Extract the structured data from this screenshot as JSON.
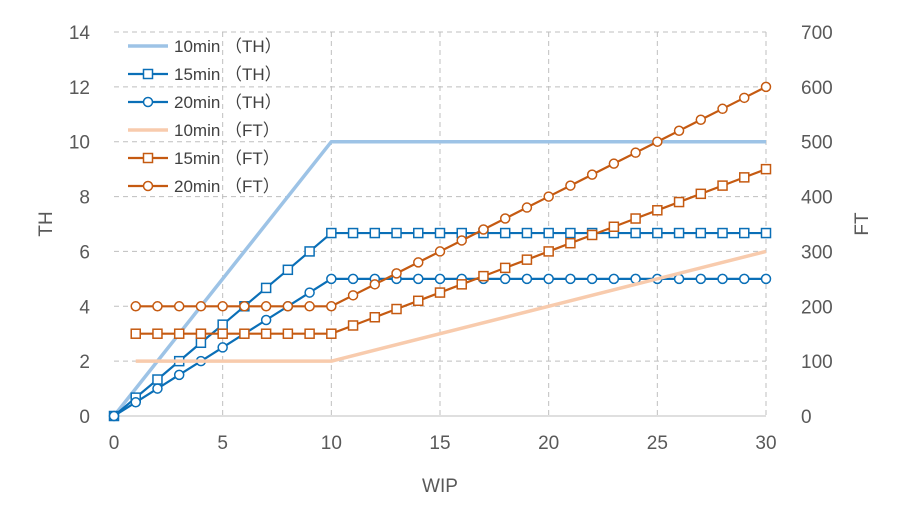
{
  "chart_data": {
    "type": "line",
    "title": "",
    "xlabel": "WIP",
    "ylabel": "TH",
    "y2label": "FT",
    "xlim": [
      0,
      30
    ],
    "ylim": [
      0,
      14
    ],
    "y2lim": [
      0,
      700
    ],
    "xticks": [
      0,
      5,
      10,
      15,
      20,
      25,
      30
    ],
    "yticks": [
      0,
      2,
      4,
      6,
      8,
      10,
      12,
      14
    ],
    "y2ticks": [
      0,
      100,
      200,
      300,
      400,
      500,
      600,
      700
    ],
    "grid": true,
    "legend_position": "top-left",
    "series": [
      {
        "name": "10min （TH）",
        "axis": "left",
        "color": "#9dc3e6",
        "marker": "none",
        "x": [
          0,
          10,
          30
        ],
        "values": [
          0,
          10,
          10
        ]
      },
      {
        "name": "15min （TH）",
        "axis": "left",
        "color": "#0a6fb7",
        "marker": "square",
        "x": [
          0,
          1,
          2,
          3,
          4,
          5,
          6,
          7,
          8,
          9,
          10,
          11,
          12,
          13,
          14,
          15,
          16,
          17,
          18,
          19,
          20,
          21,
          22,
          23,
          24,
          25,
          26,
          27,
          28,
          29,
          30
        ],
        "values": [
          0,
          0.67,
          1.33,
          2,
          2.67,
          3.33,
          4,
          4.67,
          5.33,
          6,
          6.67,
          6.67,
          6.67,
          6.67,
          6.67,
          6.67,
          6.67,
          6.67,
          6.67,
          6.67,
          6.67,
          6.67,
          6.67,
          6.67,
          6.67,
          6.67,
          6.67,
          6.67,
          6.67,
          6.67,
          6.67
        ]
      },
      {
        "name": "20min （TH）",
        "axis": "left",
        "color": "#0a6fb7",
        "marker": "circle",
        "x": [
          0,
          1,
          2,
          3,
          4,
          5,
          6,
          7,
          8,
          9,
          10,
          11,
          12,
          13,
          14,
          15,
          16,
          17,
          18,
          19,
          20,
          21,
          22,
          23,
          24,
          25,
          26,
          27,
          28,
          29,
          30
        ],
        "values": [
          0,
          0.5,
          1,
          1.5,
          2,
          2.5,
          3,
          3.5,
          4,
          4.5,
          5,
          5,
          5,
          5,
          5,
          5,
          5,
          5,
          5,
          5,
          5,
          5,
          5,
          5,
          5,
          5,
          5,
          5,
          5,
          5,
          5
        ]
      },
      {
        "name": "10min （FT）",
        "axis": "right",
        "color": "#f8cbad",
        "marker": "none",
        "x": [
          1,
          10,
          30
        ],
        "values": [
          100,
          100,
          300
        ]
      },
      {
        "name": "15min （FT）",
        "axis": "right",
        "color": "#c55a11",
        "marker": "square",
        "x": [
          1,
          2,
          3,
          4,
          5,
          6,
          7,
          8,
          9,
          10,
          11,
          12,
          13,
          14,
          15,
          16,
          17,
          18,
          19,
          20,
          21,
          22,
          23,
          24,
          25,
          26,
          27,
          28,
          29,
          30
        ],
        "values": [
          150,
          150,
          150,
          150,
          150,
          150,
          150,
          150,
          150,
          150,
          165,
          180,
          195,
          210,
          225,
          240,
          255,
          270,
          285,
          300,
          315,
          330,
          345,
          360,
          375,
          390,
          405,
          420,
          435,
          450
        ]
      },
      {
        "name": "20min （FT）",
        "axis": "right",
        "color": "#c55a11",
        "marker": "circle",
        "x": [
          1,
          2,
          3,
          4,
          5,
          6,
          7,
          8,
          9,
          10,
          11,
          12,
          13,
          14,
          15,
          16,
          17,
          18,
          19,
          20,
          21,
          22,
          23,
          24,
          25,
          26,
          27,
          28,
          29,
          30
        ],
        "values": [
          200,
          200,
          200,
          200,
          200,
          200,
          200,
          200,
          200,
          200,
          220,
          240,
          260,
          280,
          300,
          320,
          340,
          360,
          380,
          400,
          420,
          440,
          460,
          480,
          500,
          520,
          540,
          560,
          580,
          600
        ]
      }
    ]
  }
}
